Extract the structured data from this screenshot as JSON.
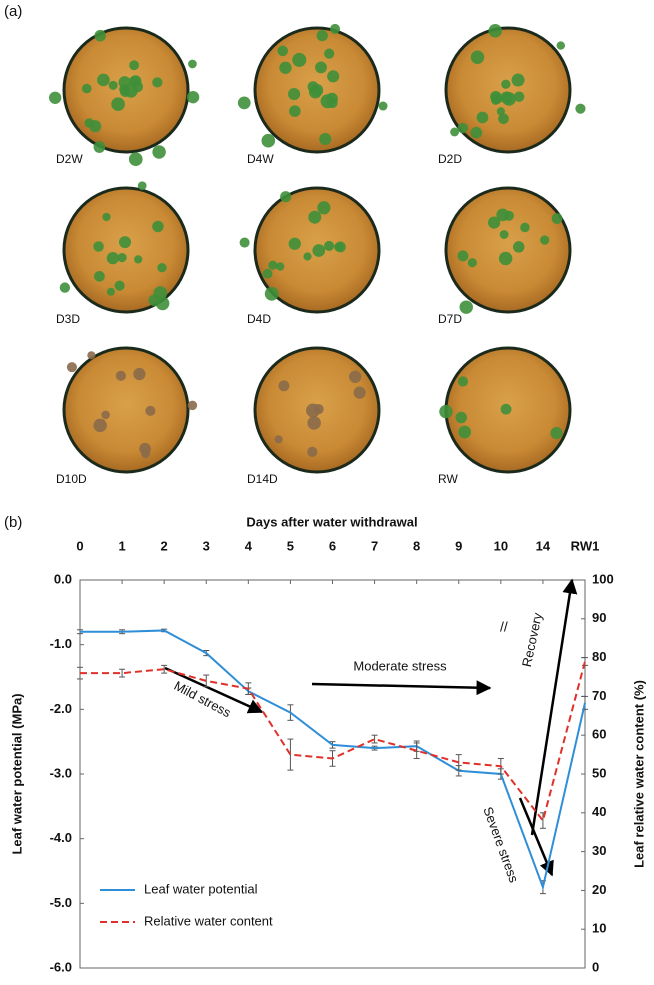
{
  "panel_a": {
    "label": "(a)",
    "pots": [
      "D2W",
      "D4W",
      "D2D",
      "D3D",
      "D4D",
      "D7D",
      "D10D",
      "D14D",
      "RW"
    ]
  },
  "panel_b": {
    "label": "(b)"
  },
  "chart_data": {
    "type": "line",
    "x_label": "Days after water withdrawal",
    "y_label": "Leaf water potential (MPa)",
    "y2_label": "Leaf relative water content (%)",
    "categories": [
      "0",
      "1",
      "2",
      "3",
      "4",
      "5",
      "6",
      "7",
      "8",
      "9",
      "10",
      "14",
      "RW1"
    ],
    "series": [
      {
        "name": "Leaf water potential",
        "color": "#2e8fd8",
        "dash": false,
        "values": [
          -0.8,
          -0.8,
          -0.78,
          -1.13,
          -1.72,
          -2.05,
          -2.55,
          -2.6,
          -2.57,
          -2.95,
          -3.0,
          -4.75,
          -1.9
        ],
        "errors": [
          0.03,
          0.03,
          0.02,
          0.04,
          0.05,
          0.12,
          0.05,
          0.03,
          0.08,
          0.08,
          0.08,
          0.1,
          0.1
        ]
      },
      {
        "name": "Relative water content",
        "color": "#e0302a",
        "dash": true,
        "axis": "y2",
        "values": [
          76,
          76,
          77,
          74,
          72,
          55,
          54,
          59,
          56,
          53,
          52,
          38,
          79
        ],
        "errors": [
          1.5,
          1,
          1,
          1.5,
          1.5,
          4,
          2,
          1,
          2,
          2,
          2,
          2,
          1
        ]
      }
    ],
    "ylim": [
      -6,
      0
    ],
    "yticks": [
      {
        "value": 0,
        "label": "0.0"
      },
      {
        "value": -1,
        "label": "-1.0"
      },
      {
        "value": -2,
        "label": "-2.0"
      },
      {
        "value": -3,
        "label": "-3.0"
      },
      {
        "value": -4,
        "label": "-4.0"
      },
      {
        "value": -5,
        "label": "-5.0"
      },
      {
        "value": -6,
        "label": "-6.0"
      }
    ],
    "y2lim": [
      0,
      100
    ],
    "y2ticks": [
      0,
      10,
      20,
      30,
      40,
      50,
      60,
      70,
      80,
      90,
      100
    ],
    "annotations": [
      "Mild stress",
      "Moderate stress",
      "Severe stress",
      "Recovery"
    ],
    "legend": "bottom-left"
  }
}
